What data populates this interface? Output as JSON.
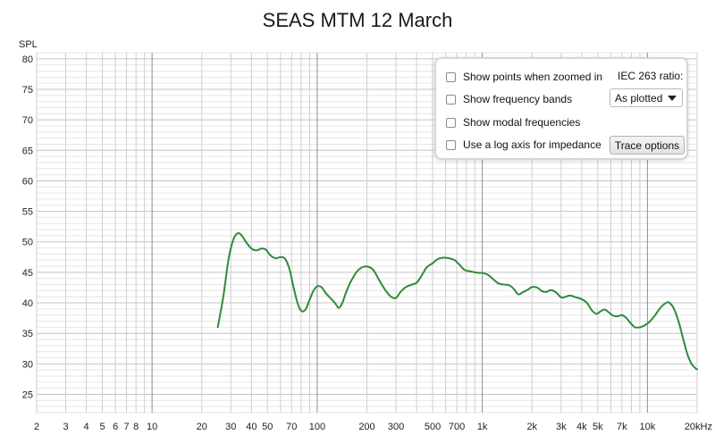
{
  "chart_data": {
    "type": "line",
    "title": "SEAS MTM 12 March",
    "ylabel": "SPL",
    "xlabel": "",
    "x_scale": "log",
    "xlim": [
      2,
      20000
    ],
    "ylim": [
      22,
      81
    ],
    "y_ticks": [
      25,
      30,
      35,
      40,
      45,
      50,
      55,
      60,
      65,
      70,
      75,
      80
    ],
    "x_ticks": [
      {
        "value": 2,
        "label": "2"
      },
      {
        "value": 3,
        "label": "3"
      },
      {
        "value": 4,
        "label": "4"
      },
      {
        "value": 5,
        "label": "5"
      },
      {
        "value": 6,
        "label": "6"
      },
      {
        "value": 7,
        "label": "7"
      },
      {
        "value": 8,
        "label": "8"
      },
      {
        "value": 10,
        "label": "10"
      },
      {
        "value": 20,
        "label": "20"
      },
      {
        "value": 30,
        "label": "30"
      },
      {
        "value": 40,
        "label": "40"
      },
      {
        "value": 50,
        "label": "50"
      },
      {
        "value": 70,
        "label": "70"
      },
      {
        "value": 100,
        "label": "100"
      },
      {
        "value": 200,
        "label": "200"
      },
      {
        "value": 300,
        "label": "300"
      },
      {
        "value": 500,
        "label": "500"
      },
      {
        "value": 700,
        "label": "700"
      },
      {
        "value": 1000,
        "label": "1k"
      },
      {
        "value": 2000,
        "label": "2k"
      },
      {
        "value": 3000,
        "label": "3k"
      },
      {
        "value": 4000,
        "label": "4k"
      },
      {
        "value": 5000,
        "label": "5k"
      },
      {
        "value": 7000,
        "label": "7k"
      },
      {
        "value": 10000,
        "label": "10k"
      },
      {
        "value": 20000,
        "label": "20kHz"
      }
    ],
    "grid": true,
    "series": [
      {
        "color": "#2e8b3a",
        "points": [
          [
            25,
            36
          ],
          [
            27,
            41
          ],
          [
            29,
            47
          ],
          [
            31,
            50.3
          ],
          [
            33,
            51.4
          ],
          [
            35,
            51
          ],
          [
            37,
            50
          ],
          [
            40,
            48.9
          ],
          [
            43,
            48.6
          ],
          [
            46,
            48.9
          ],
          [
            49,
            48.7
          ],
          [
            52,
            47.8
          ],
          [
            56,
            47.3
          ],
          [
            60,
            47.5
          ],
          [
            64,
            47.2
          ],
          [
            68,
            45.5
          ],
          [
            72,
            42.5
          ],
          [
            76,
            40
          ],
          [
            80,
            38.7
          ],
          [
            85,
            38.9
          ],
          [
            90,
            40.5
          ],
          [
            95,
            42
          ],
          [
            100,
            42.7
          ],
          [
            106,
            42.6
          ],
          [
            112,
            41.7
          ],
          [
            120,
            40.8
          ],
          [
            128,
            40
          ],
          [
            135,
            39.2
          ],
          [
            142,
            40
          ],
          [
            150,
            41.8
          ],
          [
            160,
            43.5
          ],
          [
            175,
            45.2
          ],
          [
            190,
            45.9
          ],
          [
            205,
            45.9
          ],
          [
            220,
            45.3
          ],
          [
            240,
            43.5
          ],
          [
            260,
            42
          ],
          [
            280,
            41
          ],
          [
            300,
            40.8
          ],
          [
            320,
            41.8
          ],
          [
            345,
            42.6
          ],
          [
            375,
            43
          ],
          [
            400,
            43.3
          ],
          [
            430,
            44.5
          ],
          [
            460,
            45.8
          ],
          [
            500,
            46.5
          ],
          [
            540,
            47.2
          ],
          [
            580,
            47.4
          ],
          [
            630,
            47.3
          ],
          [
            680,
            47
          ],
          [
            730,
            46.2
          ],
          [
            780,
            45.4
          ],
          [
            830,
            45.2
          ],
          [
            900,
            45
          ],
          [
            960,
            44.9
          ],
          [
            1000,
            44.9
          ],
          [
            1080,
            44.6
          ],
          [
            1150,
            44
          ],
          [
            1250,
            43.2
          ],
          [
            1350,
            43
          ],
          [
            1450,
            42.9
          ],
          [
            1550,
            42.3
          ],
          [
            1650,
            41.4
          ],
          [
            1750,
            41.7
          ],
          [
            1900,
            42.2
          ],
          [
            2000,
            42.6
          ],
          [
            2150,
            42.5
          ],
          [
            2300,
            41.9
          ],
          [
            2450,
            41.8
          ],
          [
            2600,
            42.1
          ],
          [
            2800,
            41.7
          ],
          [
            3000,
            40.9
          ],
          [
            3200,
            41
          ],
          [
            3400,
            41.2
          ],
          [
            3700,
            40.9
          ],
          [
            4000,
            40.6
          ],
          [
            4300,
            40
          ],
          [
            4600,
            38.8
          ],
          [
            4900,
            38.2
          ],
          [
            5200,
            38.6
          ],
          [
            5500,
            38.9
          ],
          [
            5800,
            38.5
          ],
          [
            6200,
            37.9
          ],
          [
            6600,
            37.8
          ],
          [
            7000,
            38
          ],
          [
            7400,
            37.6
          ],
          [
            7900,
            36.7
          ],
          [
            8400,
            36
          ],
          [
            9000,
            36
          ],
          [
            9600,
            36.3
          ],
          [
            10200,
            36.8
          ],
          [
            11000,
            37.8
          ],
          [
            12000,
            39.2
          ],
          [
            13000,
            40
          ],
          [
            13600,
            40
          ],
          [
            14500,
            39
          ],
          [
            15500,
            36.8
          ],
          [
            16500,
            34
          ],
          [
            17500,
            31.5
          ],
          [
            18500,
            30
          ],
          [
            19500,
            29.3
          ],
          [
            20000,
            29.1
          ]
        ]
      }
    ]
  },
  "options": {
    "show_points": "Show points when zoomed in",
    "show_bands": "Show frequency bands",
    "show_modal": "Show modal frequencies",
    "log_impedance": "Use a log axis for impedance",
    "iec_label": "IEC 263 ratio:",
    "iec_value": "As plotted",
    "trace_options": "Trace options"
  }
}
